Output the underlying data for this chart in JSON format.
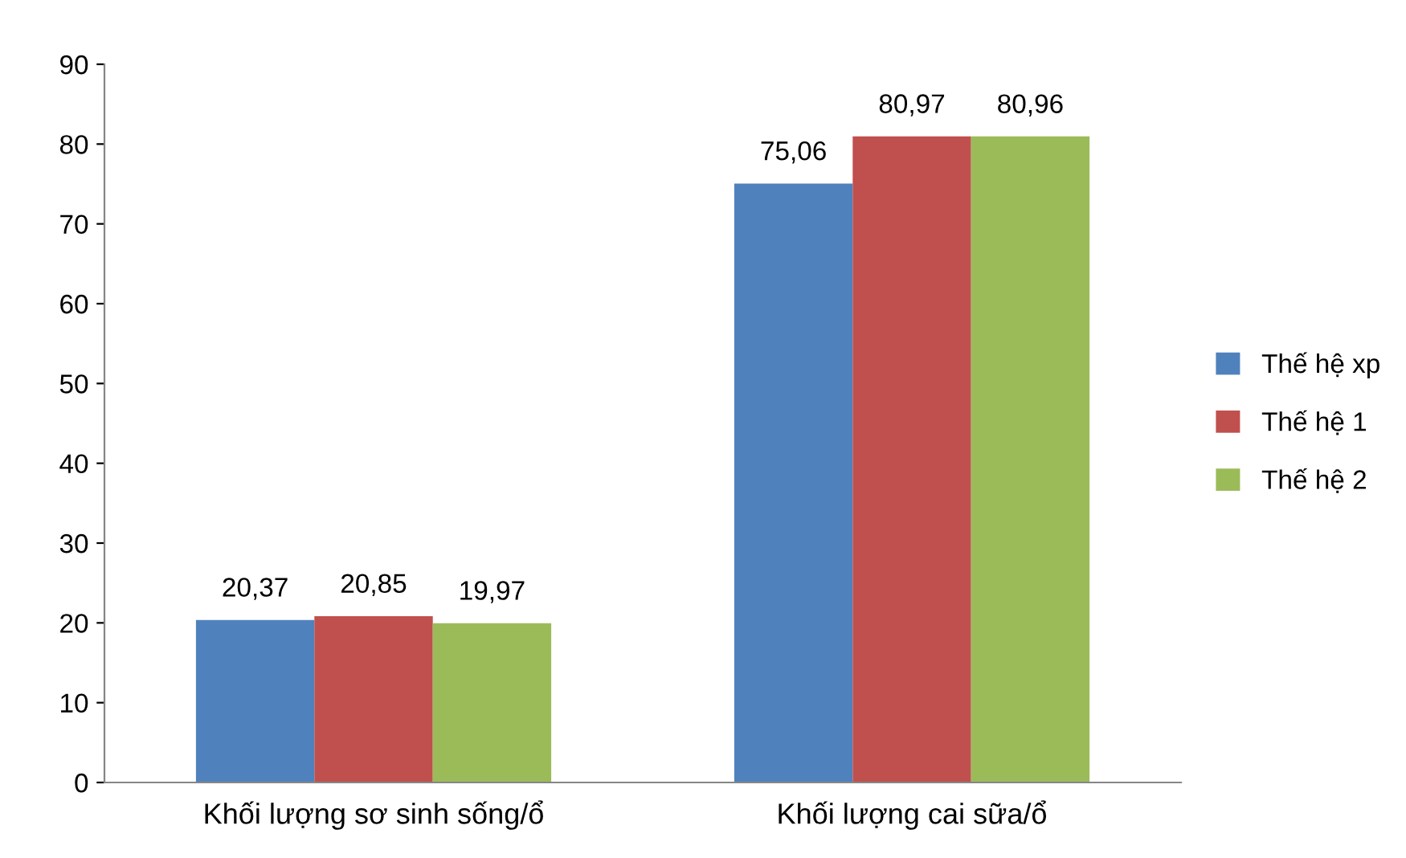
{
  "chart_data": {
    "type": "bar",
    "categories": [
      "Khối lượng sơ sinh sống/ổ",
      "Khối lượng cai sữa/ổ"
    ],
    "series": [
      {
        "name": "Thế hệ xp",
        "color": "#4f81bd",
        "values": [
          20.37,
          75.06
        ],
        "value_labels": [
          "20,37",
          "75,06"
        ]
      },
      {
        "name": "Thế hệ 1",
        "color": "#c0504d",
        "values": [
          20.85,
          80.97
        ],
        "value_labels": [
          "20,85",
          "80,97"
        ]
      },
      {
        "name": "Thế hệ 2",
        "color": "#9bbb59",
        "values": [
          19.97,
          80.96
        ],
        "value_labels": [
          "19,97",
          "80,96"
        ]
      }
    ],
    "ylim": [
      0,
      90
    ],
    "yticks": [
      0,
      10,
      20,
      30,
      40,
      50,
      60,
      70,
      80,
      90
    ],
    "grid": false,
    "legend": "right"
  }
}
